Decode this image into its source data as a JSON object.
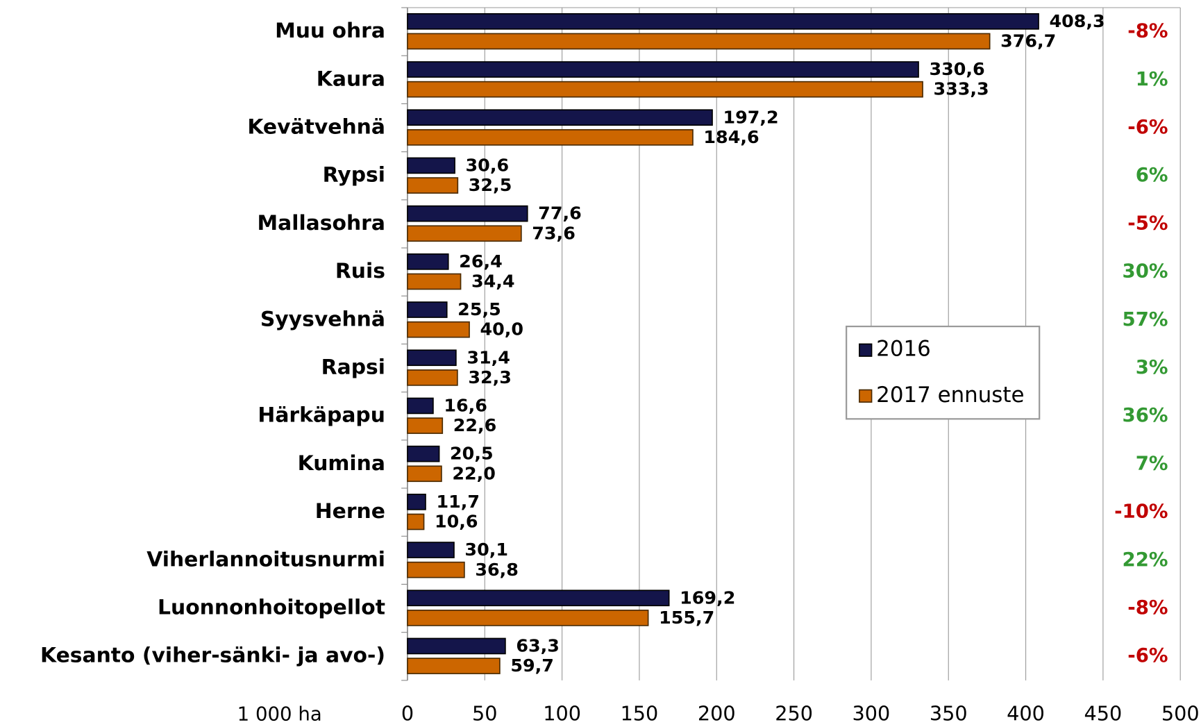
{
  "chart_data": {
    "type": "bar",
    "orientation": "horizontal",
    "categories": [
      "Muu ohra",
      "Kaura",
      "Kevätvehnä",
      "Rypsi",
      "Mallasohra",
      "Ruis",
      "Syysvehnä",
      "Rapsi",
      "Härkäpapu",
      "Kumina",
      "Herne",
      "Viherlannoitusnurmi",
      "Luonnonhoitopellot",
      "Kesanto (viher-sänki- ja avo-)"
    ],
    "series": [
      {
        "name": "2016",
        "color": "#14154a",
        "values": [
          408.3,
          330.6,
          197.2,
          30.6,
          77.6,
          26.4,
          25.5,
          31.4,
          16.6,
          20.5,
          11.7,
          30.1,
          169.2,
          63.3
        ],
        "value_labels": [
          "408,3",
          "330,6",
          "197,2",
          "30,6",
          "77,6",
          "26,4",
          "25,5",
          "31,4",
          "16,6",
          "20,5",
          "11,7",
          "30,1",
          "169,2",
          "63,3"
        ]
      },
      {
        "name": "2017 ennuste",
        "color": "#cc6600",
        "values": [
          376.7,
          333.3,
          184.6,
          32.5,
          73.6,
          34.4,
          40.0,
          32.3,
          22.6,
          22.0,
          10.6,
          36.8,
          155.7,
          59.7
        ],
        "value_labels": [
          "376,7",
          "333,3",
          "184,6",
          "32,5",
          "73,6",
          "34,4",
          "40,0",
          "32,3",
          "22,6",
          "22,0",
          "10,6",
          "36,8",
          "155,7",
          "59,7"
        ]
      }
    ],
    "changes": [
      -8,
      1,
      -6,
      6,
      -5,
      30,
      57,
      3,
      36,
      7,
      -10,
      22,
      -8,
      -6
    ],
    "change_labels": [
      "-8%",
      "1%",
      "-6%",
      "6%",
      "-5%",
      "30%",
      "57%",
      "3%",
      "36%",
      "7%",
      "-10%",
      "22%",
      "-8%",
      "-6%"
    ],
    "positive_color": "#339933",
    "negative_color": "#c00000",
    "x_label": "1 000 ha",
    "xlim": [
      0,
      500
    ],
    "xticks": [
      0,
      50,
      100,
      150,
      200,
      250,
      300,
      350,
      400,
      450,
      500
    ],
    "grid": true
  }
}
